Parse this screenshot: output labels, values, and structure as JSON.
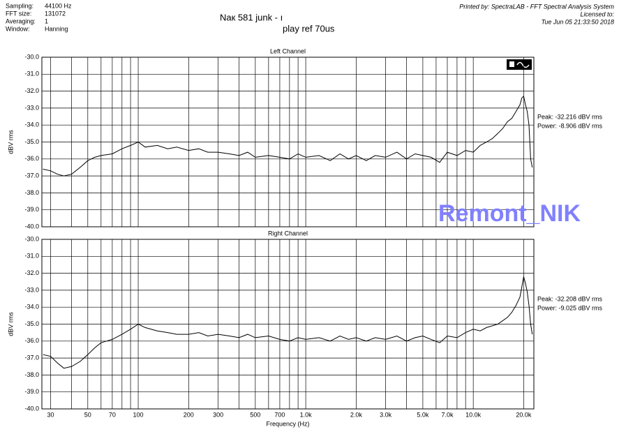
{
  "header": {
    "settings": [
      [
        "Sampling:",
        "44100 Hz"
      ],
      [
        "FFT size:",
        "131072"
      ],
      [
        "Averaging:",
        "1"
      ],
      [
        "Window:",
        "Hanning"
      ]
    ],
    "title": [
      "Nак 581 junk - ı",
      "play ref 70us"
    ],
    "printed_by": [
      "Printed by: SpectraLAB - FFT Spectral Analysis System",
      "Licensed to:",
      "Tue Jun 05 21:33:50 2018"
    ]
  },
  "watermark": "Remont_NIK",
  "chart_data": [
    {
      "type": "line",
      "title": "Left Channel",
      "y_label": "dBV rms",
      "xscale": "log",
      "color": "#000000",
      "xlim": [
        26.6,
        23000
      ],
      "ylim": [
        -40,
        -30
      ],
      "yticks": [
        {
          "value": -30,
          "label": "-30.0"
        },
        {
          "value": -31,
          "label": "-31.0"
        },
        {
          "value": -32,
          "label": "-32.0"
        },
        {
          "value": -33,
          "label": "-33.0"
        },
        {
          "value": -34,
          "label": "-34.0"
        },
        {
          "value": -35,
          "label": "-35.0"
        },
        {
          "value": -36,
          "label": "-36.0"
        },
        {
          "value": -37,
          "label": "-37.0"
        },
        {
          "value": -38,
          "label": "-38.0"
        },
        {
          "value": -39,
          "label": "-39.0"
        },
        {
          "value": -40,
          "label": "-40.0"
        }
      ],
      "xgrid": [
        30,
        40,
        50,
        60,
        70,
        80,
        90,
        100,
        200,
        300,
        400,
        500,
        600,
        700,
        800,
        900,
        1000,
        2000,
        3000,
        4000,
        5000,
        6000,
        7000,
        8000,
        9000,
        10000,
        20000
      ],
      "annotations": [
        "Peak: -32.216 dBV rms",
        "Power: -8.906 dBV rms"
      ],
      "x": [
        27,
        30,
        33,
        36,
        40,
        45,
        50,
        55,
        60,
        70,
        80,
        90,
        100,
        110,
        130,
        150,
        170,
        200,
        230,
        260,
        300,
        350,
        400,
        450,
        500,
        600,
        700,
        800,
        900,
        1000,
        1200,
        1400,
        1600,
        1800,
        2000,
        2300,
        2600,
        3000,
        3500,
        4000,
        4500,
        5000,
        5600,
        6300,
        7000,
        8000,
        9000,
        10000,
        11000,
        12000,
        13000,
        14000,
        15000,
        16000,
        17000,
        18000,
        19000,
        19500,
        20000,
        20500,
        21000,
        21500,
        22000,
        22500
      ],
      "values": [
        -36.6,
        -36.7,
        -36.9,
        -37.0,
        -36.9,
        -36.5,
        -36.1,
        -35.9,
        -35.8,
        -35.7,
        -35.4,
        -35.2,
        -35.0,
        -35.3,
        -35.2,
        -35.4,
        -35.3,
        -35.5,
        -35.4,
        -35.6,
        -35.6,
        -35.7,
        -35.8,
        -35.6,
        -35.9,
        -35.8,
        -35.9,
        -36.0,
        -35.7,
        -35.9,
        -35.8,
        -36.1,
        -35.7,
        -36.0,
        -35.8,
        -36.1,
        -35.8,
        -35.9,
        -35.6,
        -36.0,
        -35.7,
        -35.8,
        -35.9,
        -36.2,
        -35.6,
        -35.8,
        -35.5,
        -35.6,
        -35.2,
        -35.0,
        -34.8,
        -34.5,
        -34.2,
        -33.8,
        -33.6,
        -33.2,
        -32.8,
        -32.4,
        -32.3,
        -32.8,
        -33.2,
        -34.0,
        -36.0,
        -36.5
      ]
    },
    {
      "type": "line",
      "title": "Right Channel",
      "y_label": "dBV rms",
      "x_label": "Frequency (Hz)",
      "xscale": "log",
      "color": "#000000",
      "xlim": [
        26.6,
        23000
      ],
      "ylim": [
        -40,
        -30
      ],
      "yticks": [
        {
          "value": -30,
          "label": "-30.0"
        },
        {
          "value": -31,
          "label": "-31.0"
        },
        {
          "value": -32,
          "label": "-32.0"
        },
        {
          "value": -33,
          "label": "-33.0"
        },
        {
          "value": -34,
          "label": "-34.0"
        },
        {
          "value": -35,
          "label": "-35.0"
        },
        {
          "value": -36,
          "label": "-36.0"
        },
        {
          "value": -37,
          "label": "-37.0"
        },
        {
          "value": -38,
          "label": "-38.0"
        },
        {
          "value": -39,
          "label": "-39.0"
        },
        {
          "value": -40,
          "label": "-40.0"
        }
      ],
      "xticks": [
        30,
        50,
        70,
        100,
        200,
        300,
        500,
        700,
        {
          "value": 1000,
          "label": "1.0k"
        },
        {
          "value": 2000,
          "label": "2.0k"
        },
        {
          "value": 3000,
          "label": "3.0k"
        },
        {
          "value": 5000,
          "label": "5.0k"
        },
        {
          "value": 7000,
          "label": "7.0k"
        },
        {
          "value": 10000,
          "label": "10.0k"
        },
        {
          "value": 20000,
          "label": "20.0k"
        }
      ],
      "xgrid": [
        40,
        60,
        80,
        90,
        400,
        600,
        800,
        900,
        4000,
        6000,
        8000,
        9000
      ],
      "annotations": [
        "Peak: -32.208 dBV rms",
        "Power: -9.025 dBV rms"
      ],
      "x": [
        27,
        30,
        33,
        36,
        40,
        45,
        50,
        55,
        60,
        70,
        80,
        90,
        100,
        110,
        130,
        150,
        170,
        200,
        230,
        260,
        300,
        350,
        400,
        450,
        500,
        600,
        700,
        800,
        900,
        1000,
        1200,
        1400,
        1600,
        1800,
        2000,
        2300,
        2600,
        3000,
        3500,
        4000,
        4500,
        5000,
        5600,
        6300,
        7000,
        8000,
        9000,
        10000,
        11000,
        12000,
        13000,
        14000,
        15000,
        16000,
        17000,
        18000,
        19000,
        19500,
        20000,
        20500,
        21000,
        21500,
        22000,
        22500
      ],
      "values": [
        -36.8,
        -36.9,
        -37.3,
        -37.6,
        -37.5,
        -37.2,
        -36.8,
        -36.4,
        -36.1,
        -35.9,
        -35.6,
        -35.3,
        -35.0,
        -35.2,
        -35.4,
        -35.5,
        -35.6,
        -35.6,
        -35.5,
        -35.7,
        -35.6,
        -35.7,
        -35.8,
        -35.6,
        -35.8,
        -35.7,
        -35.9,
        -36.0,
        -35.8,
        -35.9,
        -35.8,
        -36.0,
        -35.7,
        -35.9,
        -35.8,
        -36.0,
        -35.8,
        -35.9,
        -35.7,
        -36.0,
        -35.8,
        -35.7,
        -35.9,
        -36.1,
        -35.7,
        -35.8,
        -35.5,
        -35.3,
        -35.4,
        -35.2,
        -35.1,
        -35.0,
        -34.8,
        -34.6,
        -34.3,
        -33.9,
        -33.4,
        -32.8,
        -32.2,
        -32.6,
        -33.1,
        -33.9,
        -35.0,
        -35.6
      ]
    }
  ]
}
